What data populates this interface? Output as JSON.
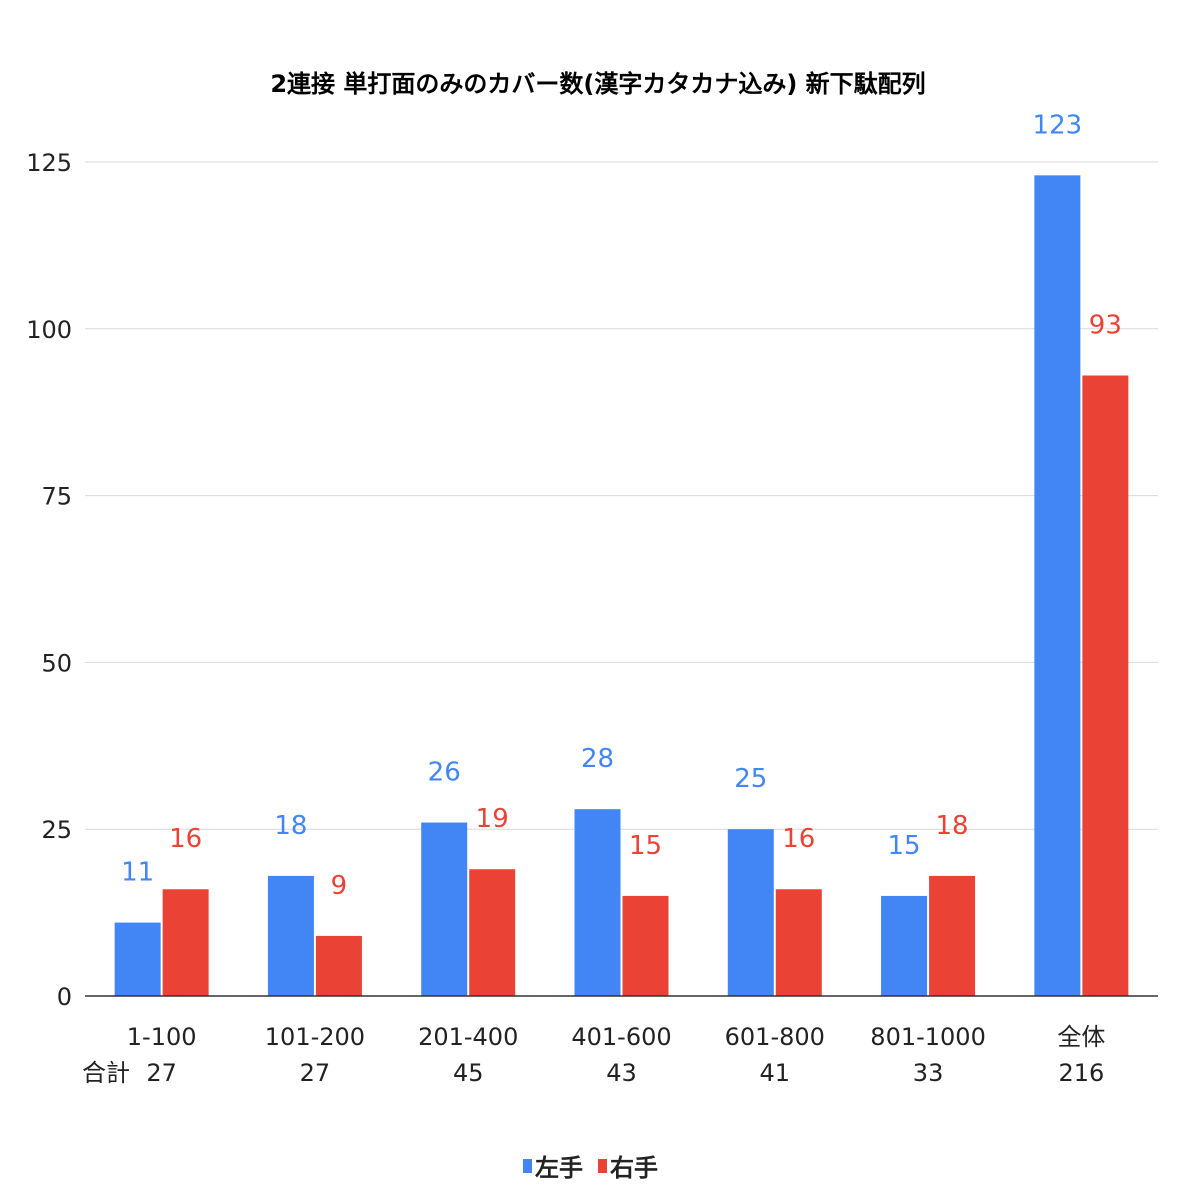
{
  "chart_data": {
    "type": "bar",
    "title": "2連接 単打面のみのカバー数(漢字カタカナ込み) 新下駄配列",
    "categories": [
      "1-100",
      "101-200",
      "201-400",
      "401-600",
      "601-800",
      "801-1000",
      "全体"
    ],
    "totals_label": "合計",
    "totals": [
      "27",
      "27",
      "45",
      "43",
      "41",
      "33",
      "216"
    ],
    "series": [
      {
        "name": "左手",
        "color": "#4285f4",
        "values": [
          11,
          18,
          26,
          28,
          25,
          15,
          123
        ]
      },
      {
        "name": "右手",
        "color": "#ea4335",
        "values": [
          16,
          9,
          19,
          15,
          16,
          18,
          93
        ]
      }
    ],
    "ylim": [
      0,
      125
    ],
    "yticks": [
      0,
      25,
      50,
      75,
      100,
      125
    ],
    "grid": true,
    "legend_position": "bottom",
    "data_labels": true
  }
}
